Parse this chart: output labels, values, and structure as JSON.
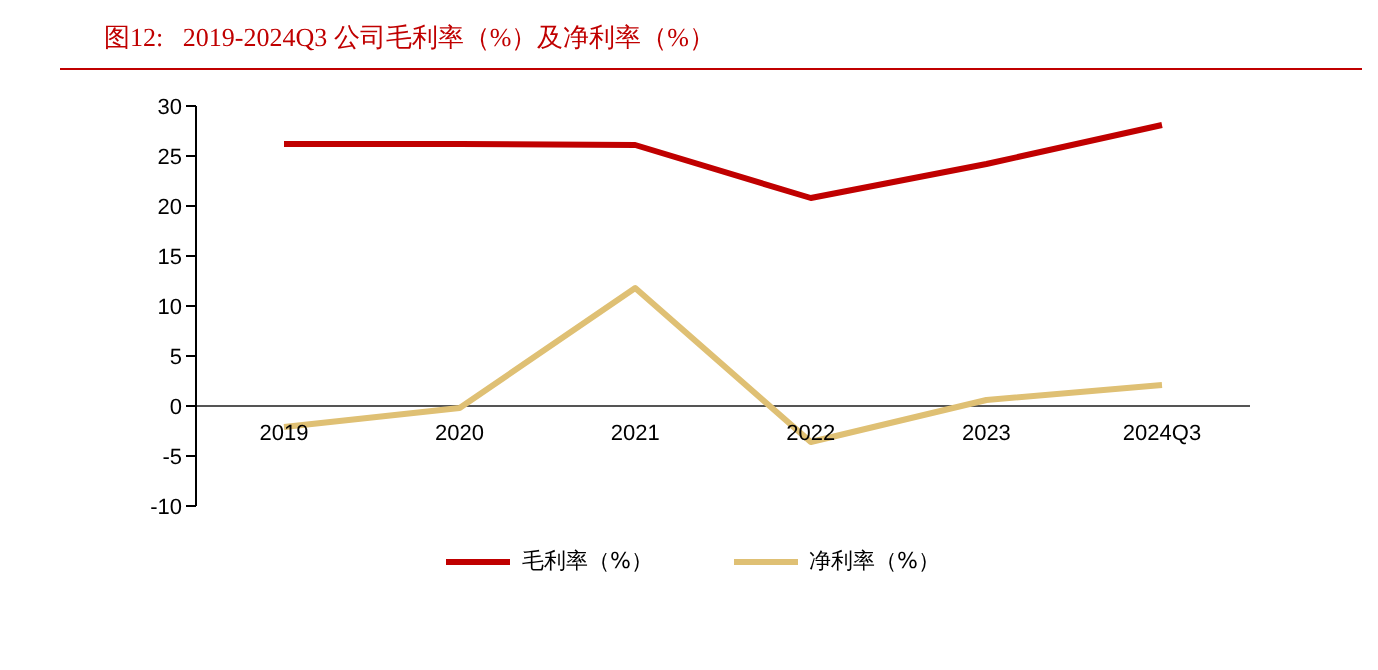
{
  "chart_data": {
    "type": "line",
    "title": "图12:   2019-2024Q3 公司毛利率（%）及净利率（%）",
    "categories": [
      "2019",
      "2020",
      "2021",
      "2022",
      "2023",
      "2024Q3"
    ],
    "series": [
      {
        "name": "毛利率（%）",
        "color": "#c00000",
        "values": [
          26.2,
          26.2,
          26.1,
          20.8,
          24.2,
          28.1
        ]
      },
      {
        "name": "净利率（%）",
        "color": "#dfc074",
        "values": [
          -2.1,
          -0.2,
          11.8,
          -3.6,
          0.6,
          2.1
        ]
      }
    ],
    "ylim": [
      -10,
      30
    ],
    "yticks": [
      -10,
      -5,
      0,
      5,
      10,
      15,
      20,
      25,
      30
    ],
    "grid": false,
    "legend": "bottom",
    "marker": "none",
    "line_style": "solid"
  }
}
